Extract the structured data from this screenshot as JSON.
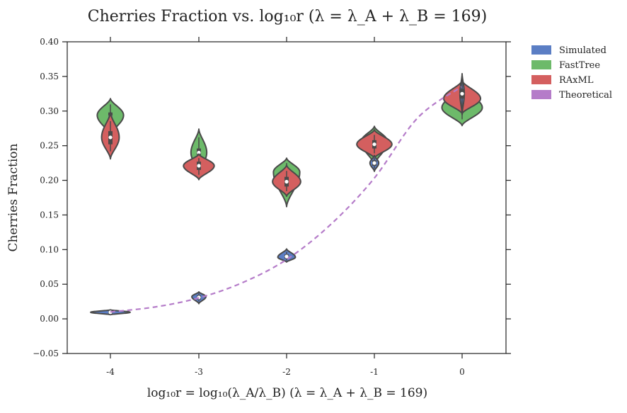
{
  "chart_data": {
    "type": "violin",
    "title": "Cherries Fraction vs. log₁₀r (λ = λ_A + λ_B = 169)",
    "xlabel": "log₁₀r = log₁₀(λ_A/λ_B) (λ = λ_A + λ_B = 169)",
    "ylabel": "Cherries Fraction",
    "categories": [
      "-4",
      "-3",
      "-2",
      "-1",
      "0"
    ],
    "ylim": [
      -0.05,
      0.4
    ],
    "yticks": [
      -0.05,
      0.0,
      0.05,
      0.1,
      0.15,
      0.2,
      0.25,
      0.3,
      0.35,
      0.4
    ],
    "ytick_labels": [
      "−0.05",
      "0.00",
      "0.05",
      "0.10",
      "0.15",
      "0.20",
      "0.25",
      "0.30",
      "0.35",
      "0.40"
    ],
    "legend_position": "outside-top-right",
    "grid": false,
    "series": [
      {
        "name": "Simulated",
        "color": "#5b7ec4",
        "kind": "violin",
        "values": [
          {
            "ymin": 0.006,
            "ymax": 0.013,
            "mode": 0.0095,
            "halfwidth": 0.45,
            "median": 0.0095,
            "q1": 0.008,
            "q3": 0.011
          },
          {
            "ymin": 0.022,
            "ymax": 0.039,
            "mode": 0.032,
            "halfwidth": 0.16,
            "median": 0.031,
            "q1": 0.028,
            "q3": 0.034
          },
          {
            "ymin": 0.082,
            "ymax": 0.101,
            "mode": 0.089,
            "halfwidth": 0.2,
            "median": 0.09,
            "q1": 0.087,
            "q3": 0.093
          },
          {
            "ymin": 0.213,
            "ymax": 0.236,
            "mode": 0.225,
            "halfwidth": 0.1,
            "median": 0.225,
            "q1": 0.221,
            "q3": 0.229
          },
          {
            "ymin": 0.295,
            "ymax": 0.354,
            "mode": 0.325,
            "halfwidth": 0.05,
            "median": 0.325,
            "q1": 0.318,
            "q3": 0.332
          }
        ]
      },
      {
        "name": "FastTree",
        "color": "#6dba6a",
        "kind": "violin",
        "values": [
          {
            "ymin": 0.265,
            "ymax": 0.318,
            "mode": 0.294,
            "halfwidth": 0.3,
            "median": 0.292,
            "q1": 0.285,
            "q3": 0.298
          },
          {
            "ymin": 0.21,
            "ymax": 0.274,
            "mode": 0.24,
            "halfwidth": 0.18,
            "median": 0.24,
            "q1": 0.232,
            "q3": 0.246
          },
          {
            "ymin": 0.162,
            "ymax": 0.232,
            "mode": 0.212,
            "halfwidth": 0.3,
            "median": 0.21,
            "q1": 0.203,
            "q3": 0.217
          },
          {
            "ymin": 0.222,
            "ymax": 0.278,
            "mode": 0.256,
            "halfwidth": 0.3,
            "median": 0.253,
            "q1": 0.246,
            "q3": 0.26
          },
          {
            "ymin": 0.279,
            "ymax": 0.335,
            "mode": 0.305,
            "halfwidth": 0.46,
            "median": 0.305,
            "q1": 0.3,
            "q3": 0.31
          }
        ]
      },
      {
        "name": "RAxML",
        "color": "#d45f5f",
        "kind": "violin",
        "values": [
          {
            "ymin": 0.231,
            "ymax": 0.298,
            "mode": 0.262,
            "halfwidth": 0.2,
            "median": 0.262,
            "q1": 0.252,
            "q3": 0.271
          },
          {
            "ymin": 0.201,
            "ymax": 0.238,
            "mode": 0.221,
            "halfwidth": 0.35,
            "median": 0.221,
            "q1": 0.215,
            "q3": 0.227
          },
          {
            "ymin": 0.177,
            "ymax": 0.222,
            "mode": 0.198,
            "halfwidth": 0.32,
            "median": 0.198,
            "q1": 0.191,
            "q3": 0.205
          },
          {
            "ymin": 0.232,
            "ymax": 0.273,
            "mode": 0.252,
            "halfwidth": 0.4,
            "median": 0.252,
            "q1": 0.246,
            "q3": 0.258
          },
          {
            "ymin": 0.296,
            "ymax": 0.344,
            "mode": 0.318,
            "halfwidth": 0.42,
            "median": 0.317,
            "q1": 0.311,
            "q3": 0.323
          }
        ]
      },
      {
        "name": "Theoretical",
        "color": "#b57cc9",
        "kind": "dashed-line",
        "x": [
          -4.0,
          -3.5,
          -3.0,
          -2.5,
          -2.0,
          -1.5,
          -1.0,
          -0.5,
          0.0
        ],
        "values": [
          0.01,
          0.017,
          0.03,
          0.052,
          0.085,
          0.135,
          0.202,
          0.29,
          0.335
        ]
      }
    ]
  }
}
